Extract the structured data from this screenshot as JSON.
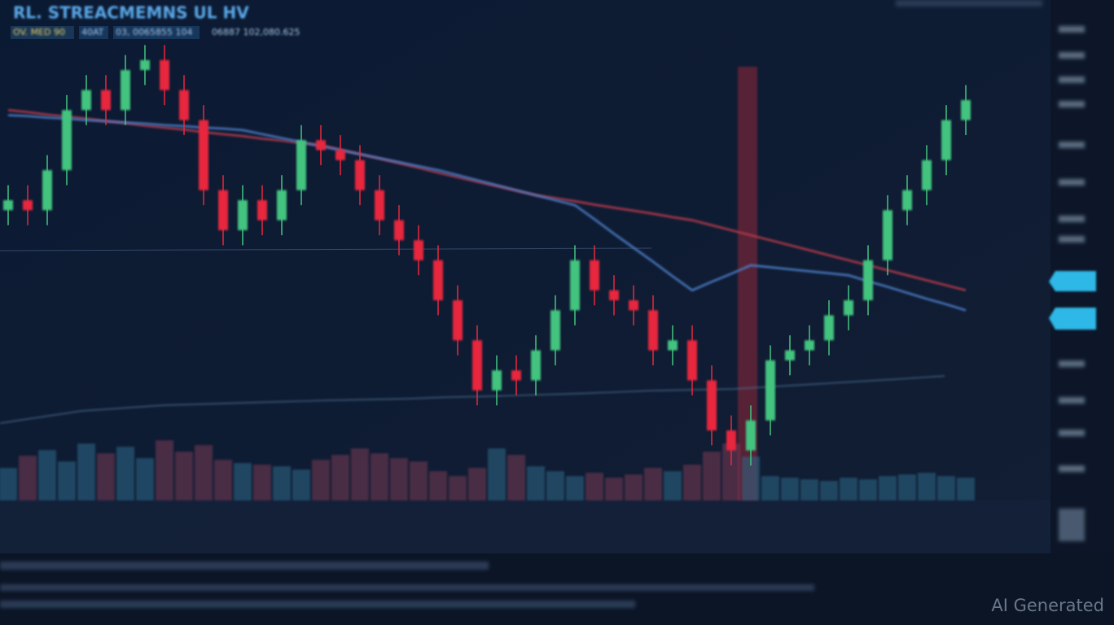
{
  "title": "RL. STREACMEMNS UL HV",
  "header": {
    "items": [
      "OV. MED 90",
      "40AT",
      "03, 0065855 104",
      "06887 102,080.625"
    ]
  },
  "watermark": "AI Generated",
  "chart_data": {
    "type": "candlestick",
    "categories": [
      null,
      null,
      null,
      null,
      null,
      null,
      null,
      null,
      null,
      null,
      null,
      null,
      null,
      null,
      null,
      null,
      null,
      null,
      null,
      null,
      null,
      null,
      null,
      null,
      null,
      null,
      null,
      null,
      null,
      null,
      null,
      null,
      null,
      null,
      null,
      null,
      null,
      null,
      null,
      null,
      null,
      null,
      null,
      null,
      null,
      null,
      null,
      null,
      null,
      null
    ],
    "open": [
      58,
      60,
      58,
      66,
      78,
      82,
      78,
      86,
      88,
      82,
      76,
      62,
      54,
      60,
      56,
      62,
      72,
      70,
      68,
      62,
      56,
      52,
      48,
      40,
      32,
      22,
      26,
      24,
      30,
      38,
      48,
      42,
      40,
      38,
      30,
      32,
      24,
      14,
      10,
      16,
      28,
      30,
      32,
      37,
      40,
      48,
      58,
      62,
      68,
      76
    ],
    "high": [
      63,
      63,
      69,
      81,
      85,
      85,
      89,
      91,
      91,
      85,
      79,
      65,
      63,
      63,
      65,
      75,
      75,
      73,
      71,
      65,
      59,
      55,
      51,
      43,
      35,
      29,
      29,
      33,
      41,
      51,
      51,
      45,
      43,
      41,
      35,
      35,
      27,
      17,
      19,
      31,
      33,
      35,
      40,
      43,
      51,
      61,
      65,
      71,
      79,
      83
    ],
    "low": [
      55,
      55,
      55,
      63,
      75,
      75,
      75,
      83,
      79,
      73,
      59,
      51,
      51,
      53,
      53,
      59,
      67,
      65,
      59,
      53,
      49,
      45,
      37,
      29,
      19,
      19,
      21,
      21,
      27,
      35,
      39,
      37,
      35,
      27,
      27,
      21,
      11,
      7,
      7,
      13,
      25,
      27,
      29,
      34,
      37,
      45,
      55,
      59,
      65,
      73
    ],
    "close": [
      60,
      58,
      66,
      78,
      82,
      78,
      86,
      88,
      82,
      76,
      62,
      54,
      60,
      56,
      62,
      72,
      70,
      68,
      62,
      56,
      52,
      48,
      40,
      32,
      22,
      26,
      24,
      30,
      38,
      48,
      42,
      40,
      38,
      30,
      32,
      24,
      14,
      10,
      16,
      28,
      30,
      32,
      37,
      40,
      48,
      58,
      62,
      68,
      76,
      80
    ],
    "up_color": "#43c47f",
    "down_color": "#e8283c",
    "ylim": [
      0,
      100
    ],
    "lines": [
      {
        "color": "#b0384a",
        "values": [
          78,
          77.6,
          77.1,
          76.7,
          76.3,
          75.8,
          75.4,
          74.9,
          74.5,
          74.1,
          73.6,
          73.2,
          72.8,
          72.3,
          71.9,
          71.4,
          71,
          70.1,
          69.2,
          68.3,
          67.4,
          66.5,
          65.5,
          64.6,
          63.7,
          62.8,
          61.9,
          61,
          60.4,
          59.8,
          59.1,
          58.5,
          57.9,
          57.3,
          56.6,
          56,
          55,
          54,
          53,
          52,
          51,
          50,
          49,
          48,
          47,
          46,
          45,
          44,
          43,
          42
        ]
      },
      {
        "color": "#4a78c0",
        "values": [
          77,
          76.8,
          76.5,
          76.3,
          76,
          75.8,
          75.5,
          75.3,
          75,
          74.8,
          74.5,
          74.3,
          74,
          73.2,
          72.4,
          71.6,
          70.8,
          70,
          69.2,
          68.4,
          67.6,
          66.8,
          66,
          65,
          64,
          63,
          62,
          61,
          60,
          59,
          56.2,
          53.3,
          50.5,
          47.7,
          44.8,
          42,
          43.7,
          45.3,
          47,
          46.6,
          46.2,
          45.8,
          45.4,
          45,
          43.8,
          42.7,
          41.5,
          40.3,
          39.2,
          38
        ]
      }
    ],
    "volume": [
      40,
      55,
      62,
      48,
      70,
      58,
      66,
      52,
      74,
      60,
      68,
      50,
      46,
      44,
      42,
      38,
      50,
      56,
      64,
      58,
      52,
      48,
      36,
      30,
      40,
      64,
      56,
      42,
      36,
      30,
      34,
      28,
      32,
      40,
      36,
      44,
      60,
      70,
      54,
      30,
      28,
      26,
      24,
      28,
      26,
      30,
      32,
      34,
      30,
      28
    ],
    "y2lim": [
      0,
      100
    ]
  }
}
